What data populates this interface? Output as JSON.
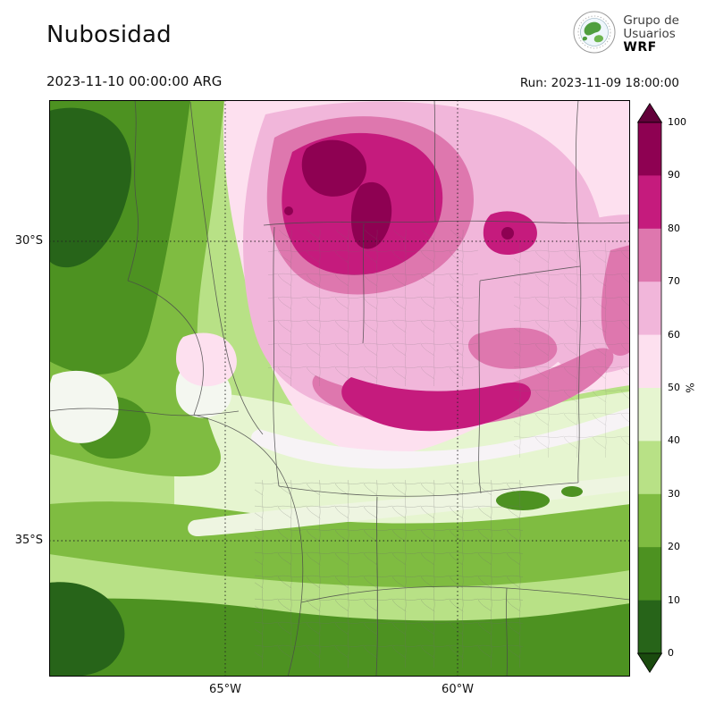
{
  "header": {
    "title": "Nubosidad",
    "valid_time": "2023-11-10 00:00:00 ARG",
    "run_time": "Run: 2023-11-09 18:00:00",
    "logo": {
      "org_line1": "Grupo de",
      "org_line2": "Usuarios",
      "org_line3": "WRF"
    }
  },
  "map": {
    "y_ticks": [
      "30°S",
      "35°S"
    ],
    "x_ticks": [
      "65°W",
      "60°W"
    ]
  },
  "colorbar": {
    "label": "%",
    "ticks_top_to_bottom": [
      "100",
      "90",
      "80",
      "70",
      "60",
      "50",
      "40",
      "30",
      "20",
      "10",
      "0"
    ],
    "segment_colors_bottom_to_top": [
      "#276419",
      "#4d9221",
      "#7fbc41",
      "#b8e186",
      "#e6f5d0",
      "#fde0ef",
      "#f1b6da",
      "#de77ae",
      "#c51b7d",
      "#8e0152"
    ],
    "extend_low_color": "#1a4a0e",
    "extend_high_color": "#62013a"
  },
  "chart_data": {
    "type": "heatmap",
    "title": "Nubosidad",
    "units": "%",
    "valid_time": "2023-11-10 00:00:00 ARG",
    "run": "Run: 2023-11-09 18:00:00",
    "x_ticks": [
      "65°W",
      "60°W"
    ],
    "y_ticks": [
      "30°S",
      "35°S"
    ],
    "scale_ticks": [
      0,
      10,
      20,
      30,
      40,
      50,
      60,
      70,
      80,
      90,
      100
    ],
    "colorbar_extends": "both",
    "legend_position": "right",
    "regions": [
      {
        "area": "northwest mountains (west of ~66°W, 28-32°S)",
        "cloud_cover_pct": "0-20"
      },
      {
        "area": "north-central band (~28-31°S), with embedded cores",
        "cloud_cover_pct": "60-100"
      },
      {
        "area": "dark cores near 29-30°S / 63-64°W and 30°S / 61°W",
        "cloud_cover_pct": "90-100"
      },
      {
        "area": "magenta arc near 31.5°S between 63°W and 61°W",
        "cloud_cover_pct": "80-90"
      },
      {
        "area": "central transition band (~32-33°S)",
        "cloud_cover_pct": "40-60"
      },
      {
        "area": "south (south of ~33.5°S)",
        "cloud_cover_pct": "0-30"
      }
    ]
  }
}
